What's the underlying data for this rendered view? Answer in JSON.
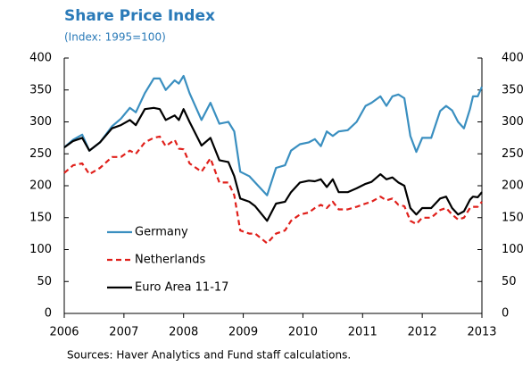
{
  "chart_data": {
    "type": "line",
    "title": "Share Price Index",
    "subtitle": "(Index: 1995=100)",
    "source": "Sources: Haver Analytics and Fund staff calculations.",
    "x": [
      2006.0,
      2006.15,
      2006.3,
      2006.42,
      2006.6,
      2006.8,
      2006.95,
      2007.1,
      2007.2,
      2007.35,
      2007.5,
      2007.6,
      2007.7,
      2007.85,
      2007.92,
      2008.0,
      2008.1,
      2008.3,
      2008.45,
      2008.6,
      2008.75,
      2008.85,
      2008.95,
      2009.1,
      2009.2,
      2009.4,
      2009.55,
      2009.7,
      2009.8,
      2009.95,
      2010.1,
      2010.2,
      2010.3,
      2010.4,
      2010.5,
      2010.6,
      2010.75,
      2010.9,
      2011.05,
      2011.15,
      2011.3,
      2011.4,
      2011.5,
      2011.6,
      2011.7,
      2011.8,
      2011.9,
      2012.0,
      2012.15,
      2012.3,
      2012.4,
      2012.5,
      2012.6,
      2012.7,
      2012.8,
      2012.85,
      2012.93,
      2013.0
    ],
    "series": [
      {
        "name": "Germany",
        "color": "#3a8fc0",
        "dashed": false,
        "values": [
          260,
          272,
          280,
          255,
          268,
          293,
          305,
          322,
          315,
          345,
          368,
          368,
          350,
          365,
          360,
          372,
          345,
          303,
          330,
          297,
          300,
          285,
          222,
          215,
          205,
          185,
          228,
          232,
          255,
          265,
          268,
          273,
          262,
          285,
          278,
          285,
          287,
          300,
          325,
          330,
          340,
          325,
          340,
          343,
          337,
          278,
          253,
          275,
          275,
          317,
          325,
          318,
          300,
          290,
          320,
          340,
          340,
          355
        ]
      },
      {
        "name": "Netherlands",
        "color": "#e0201b",
        "dashed": true,
        "values": [
          220,
          232,
          235,
          218,
          228,
          245,
          245,
          255,
          250,
          268,
          275,
          277,
          262,
          272,
          258,
          257,
          235,
          222,
          243,
          205,
          205,
          185,
          130,
          125,
          125,
          110,
          125,
          130,
          145,
          155,
          158,
          165,
          170,
          165,
          175,
          163,
          163,
          167,
          172,
          175,
          183,
          177,
          180,
          170,
          168,
          145,
          140,
          150,
          150,
          162,
          165,
          155,
          147,
          150,
          165,
          167,
          167,
          175
        ]
      },
      {
        "name": "Euro Area 11-17",
        "color": "#000000",
        "dashed": false,
        "values": [
          260,
          270,
          275,
          255,
          268,
          290,
          295,
          303,
          295,
          320,
          322,
          320,
          303,
          310,
          303,
          320,
          300,
          263,
          275,
          240,
          237,
          215,
          180,
          175,
          168,
          145,
          172,
          175,
          190,
          205,
          208,
          207,
          210,
          198,
          210,
          190,
          190,
          196,
          203,
          206,
          218,
          210,
          213,
          205,
          200,
          165,
          155,
          165,
          165,
          180,
          183,
          165,
          155,
          160,
          178,
          183,
          182,
          190
        ]
      }
    ],
    "xlim": [
      2006,
      2013
    ],
    "xticks": [
      2006,
      2007,
      2008,
      2009,
      2010,
      2011,
      2012,
      2013
    ],
    "ylim": [
      0,
      400
    ],
    "yticks": [
      0,
      50,
      100,
      150,
      200,
      250,
      300,
      350,
      400
    ],
    "right_axis_labels": true,
    "grid": false,
    "legend": "lower left"
  }
}
